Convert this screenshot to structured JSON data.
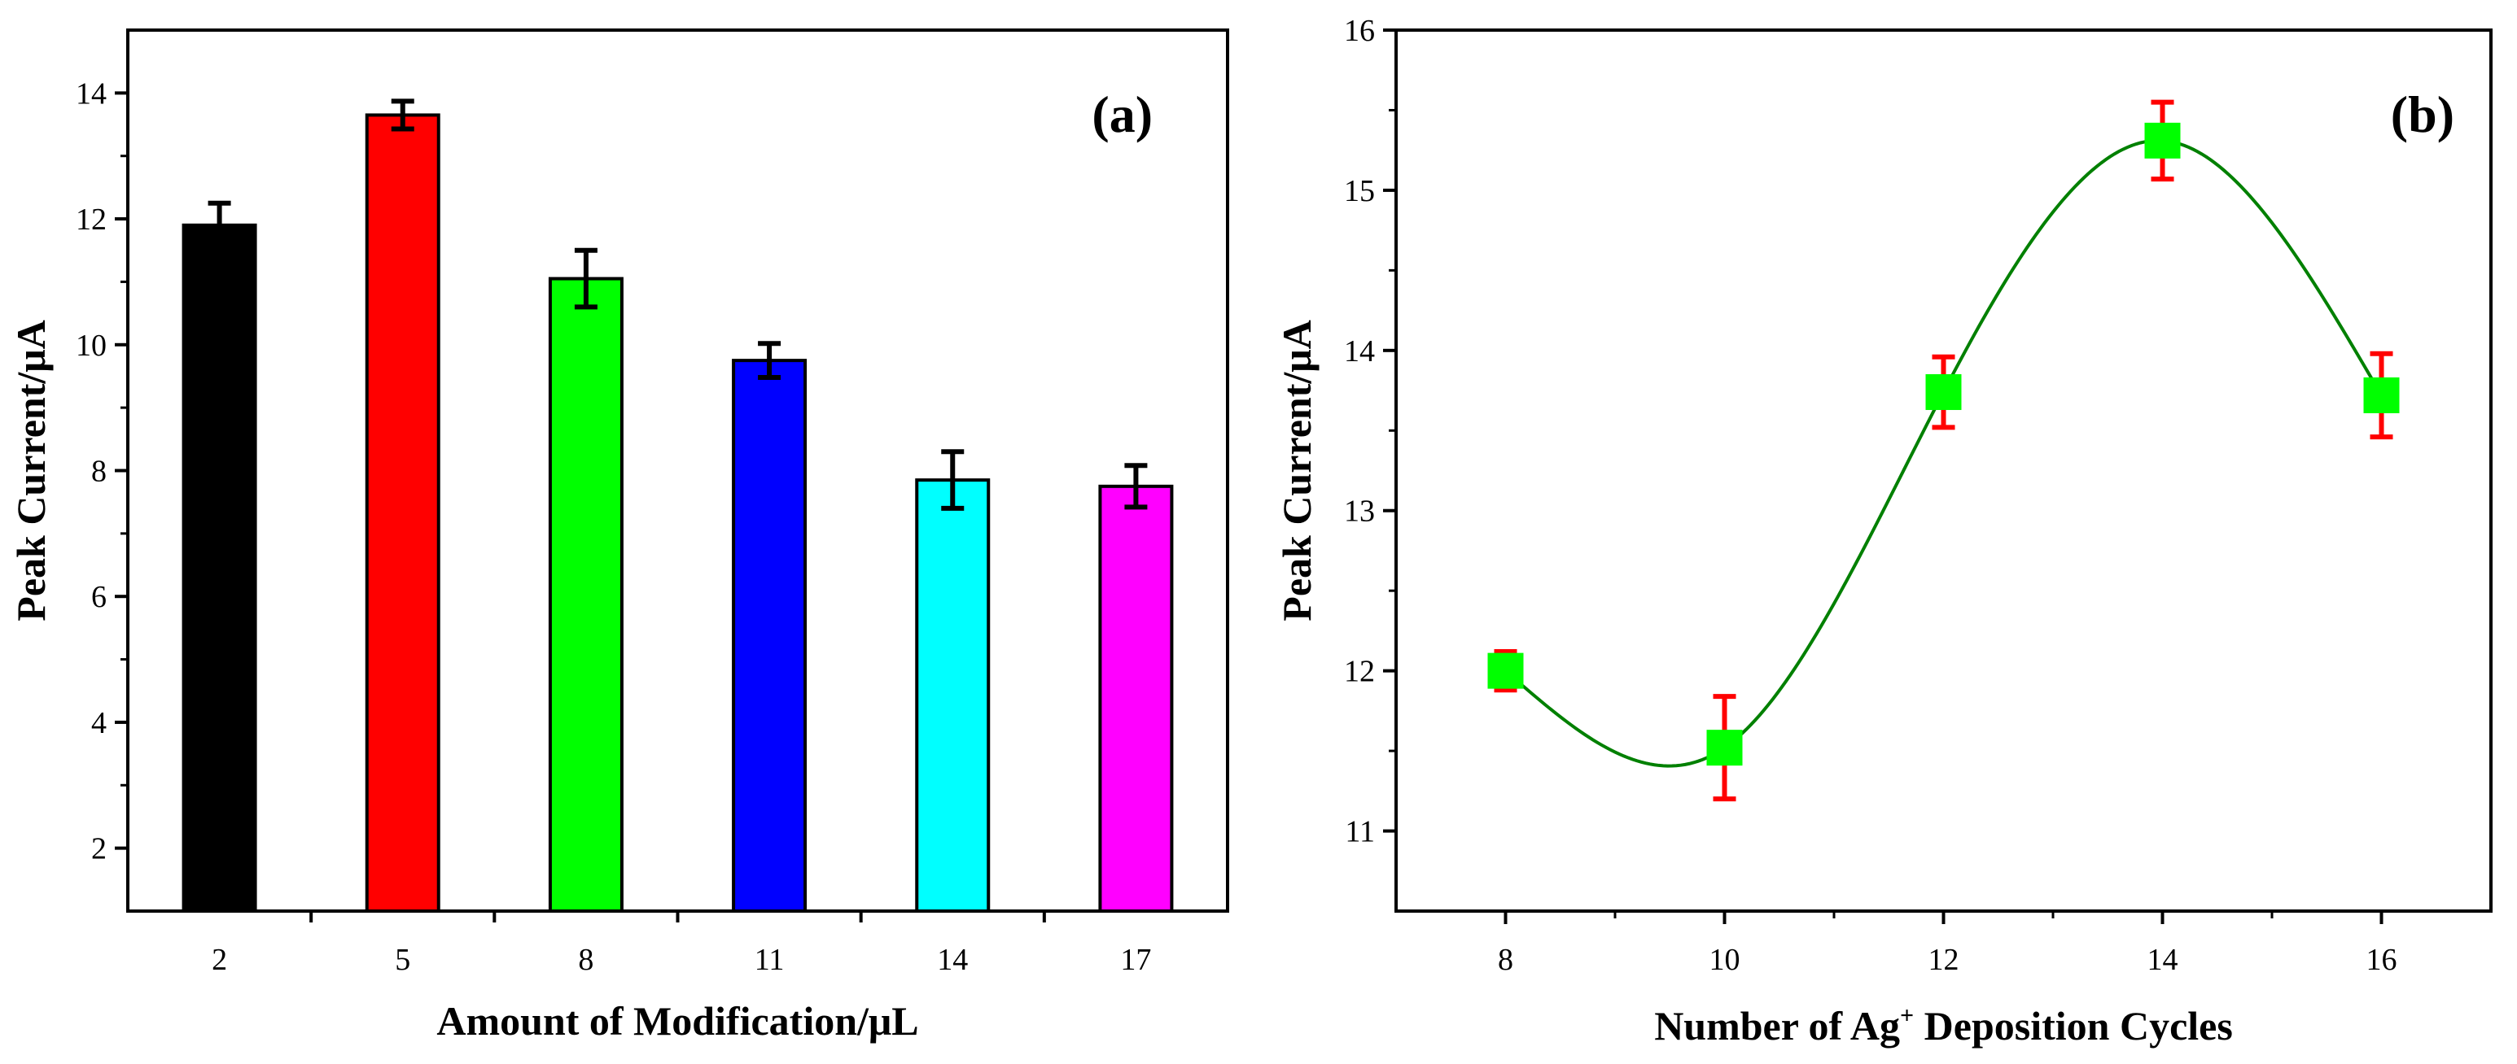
{
  "chart_data": [
    {
      "type": "bar",
      "panel_label": "(a)",
      "xlabel": "Amount of Modification/μL",
      "ylabel": "Peak Current/μA",
      "categories": [
        "2",
        "5",
        "8",
        "11",
        "14",
        "17"
      ],
      "values": [
        11.9,
        13.65,
        11.05,
        9.75,
        7.85,
        7.75
      ],
      "errors": [
        0.35,
        0.22,
        0.45,
        0.27,
        0.45,
        0.33
      ],
      "bar_colors": [
        "#000000",
        "#ff0000",
        "#00ff00",
        "#0000ff",
        "#00ffff",
        "#ff00ff"
      ],
      "ylim": [
        1,
        15
      ],
      "yticks": [
        "2",
        "4",
        "6",
        "8",
        "10",
        "12",
        "14"
      ],
      "grid": false
    },
    {
      "type": "scatter",
      "panel_label": "(b)",
      "xlabel_main": "Number of Ag",
      "xlabel_sup": "+",
      "xlabel_tail": " Deposition Cycles",
      "ylabel": "Peak Current/μA",
      "x": [
        8,
        10,
        12,
        14,
        16
      ],
      "y": [
        12.0,
        11.52,
        13.74,
        15.31,
        13.72
      ],
      "errors": [
        0.12,
        0.32,
        0.22,
        0.24,
        0.26
      ],
      "marker_color": "#00ff00",
      "error_color": "#ff0000",
      "line_color": "#008000",
      "fit": "smooth spline",
      "xlim": [
        7,
        17
      ],
      "ylim": [
        10.5,
        16
      ],
      "xticks": [
        "8",
        "10",
        "12",
        "14",
        "16"
      ],
      "yticks": [
        "11",
        "12",
        "13",
        "14",
        "15",
        "16"
      ],
      "grid": false
    }
  ]
}
